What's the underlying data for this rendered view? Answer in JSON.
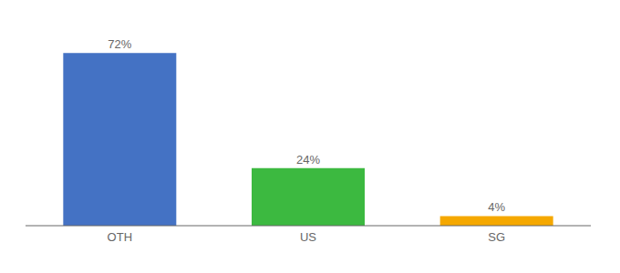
{
  "chart_data": {
    "type": "bar",
    "categories": [
      "OTH",
      "US",
      "SG"
    ],
    "values": [
      72,
      24,
      4
    ],
    "value_labels": [
      "72%",
      "24%",
      "4%"
    ],
    "colors": [
      "#4472c4",
      "#3cb940",
      "#f5a800"
    ],
    "ylim": [
      0,
      82
    ],
    "data_labels": true,
    "tick_labels": "x",
    "grid": false
  }
}
